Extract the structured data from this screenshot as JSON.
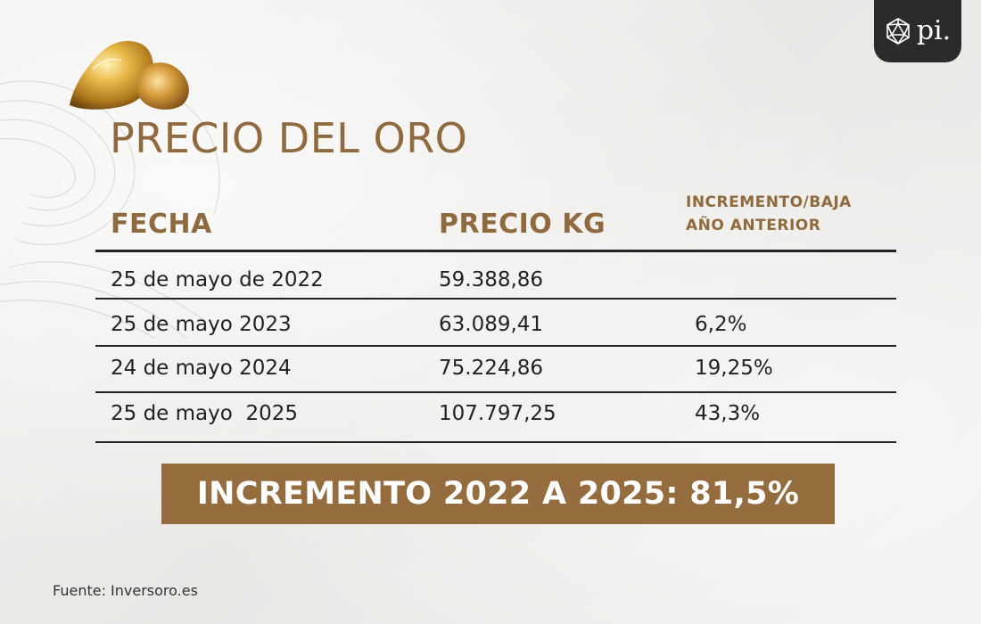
{
  "title": "PRECIO DEL ORO",
  "logo": {
    "text": "pi."
  },
  "table": {
    "headers": {
      "fecha": "FECHA",
      "precio": "PRECIO KG",
      "incremento_line1": "INCREMENTO/BAJA",
      "incremento_line2": "AÑO ANTERIOR"
    },
    "rows": [
      {
        "fecha": "25 de mayo de 2022",
        "precio": "59.388,86",
        "incremento": ""
      },
      {
        "fecha": "25 de mayo 2023",
        "precio": "63.089,41",
        "incremento": "6,2%"
      },
      {
        "fecha": "24 de mayo 2024",
        "precio": "75.224,86",
        "incremento": "19,25%"
      },
      {
        "fecha": "25 de mayo  2025",
        "precio": "107.797,25",
        "incremento": "43,3%"
      }
    ]
  },
  "banner": {
    "text": "INCREMENTO 2022 A 2025: 81,5%"
  },
  "source": "Fuente: Inversoro.es",
  "colors": {
    "accent": "#946c3d",
    "title": "#8f6a3f",
    "logo_bg": "#2b2b2b",
    "text": "#222222"
  },
  "icons": {
    "logo": "geodesic-sphere-icon",
    "illustration": "gold-nugget-icon"
  }
}
